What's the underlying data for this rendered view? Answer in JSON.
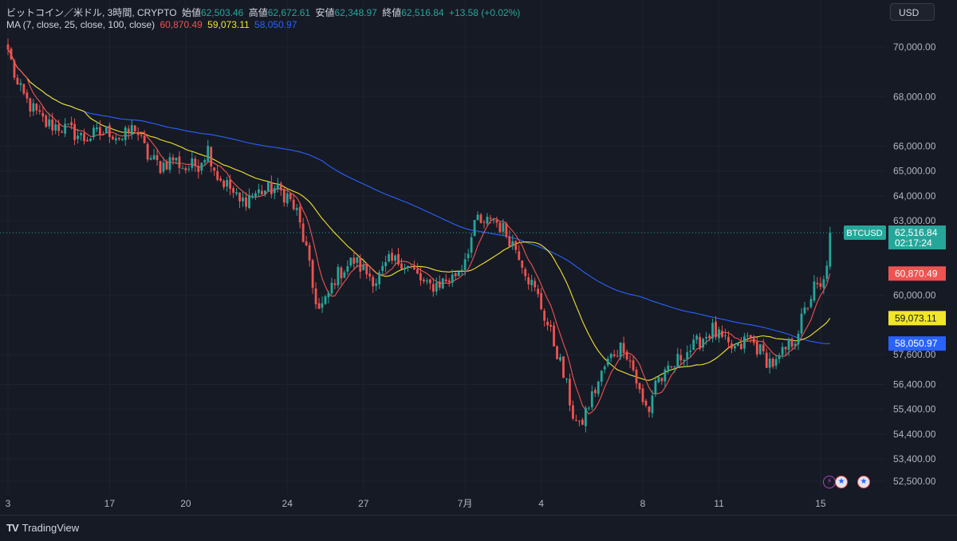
{
  "symbol": {
    "name": "ビットコイン／米ドル, 3時間, CRYPTO",
    "open_label": "始値",
    "open": "62,503.46",
    "high_label": "高値",
    "high": "62,672.61",
    "low_label": "安値",
    "low": "62,348.97",
    "close_label": "終値",
    "close": "62,516.84",
    "change": "+13.58 (+0.02%)"
  },
  "ma_legend": {
    "label": "MA (7, close, 25, close, 100, close)",
    "ma7": "60,870.49",
    "ma25": "59,073.11",
    "ma100": "58,050.97"
  },
  "currency": "USD",
  "brand": {
    "logo": "TV",
    "name": "TradingView"
  },
  "price_labels": {
    "ticker": "BTCUSD",
    "last": "62,516.84",
    "countdown": "02:17:24",
    "ma7": "60,870.49",
    "ma25": "59,073.11",
    "ma100": "58,050.97"
  },
  "colors": {
    "background": "#161a25",
    "up": "#26a69a",
    "down": "#ef5350",
    "ma7": "#ef5350",
    "ma25": "#f2e52a",
    "ma100": "#2962ff",
    "grid": "#1f2330"
  },
  "event_icons": [
    "lightning-icon",
    "us-flag-icon",
    "us-flag-icon"
  ],
  "chart_data": {
    "type": "candlestick",
    "y_axis": {
      "min": 52000,
      "max": 71000,
      "ticks": [
        {
          "value": 70000,
          "label": "70,000.00"
        },
        {
          "value": 68000,
          "label": "68,000.00"
        },
        {
          "value": 66000,
          "label": "66,000.00"
        },
        {
          "value": 65000,
          "label": "65,000.00"
        },
        {
          "value": 64000,
          "label": "64,000.00"
        },
        {
          "value": 63000,
          "label": "63,000.00"
        },
        {
          "value": 60000,
          "label": "60,000.00"
        },
        {
          "value": 57600,
          "label": "57,600.00"
        },
        {
          "value": 56400,
          "label": "56,400.00"
        },
        {
          "value": 55400,
          "label": "55,400.00"
        },
        {
          "value": 54400,
          "label": "54,400.00"
        },
        {
          "value": 53400,
          "label": "53,400.00"
        },
        {
          "value": 52500,
          "label": "52,500.00"
        }
      ]
    },
    "x_axis": {
      "ticks": [
        {
          "bar": 0,
          "label": "3"
        },
        {
          "bar": 32,
          "label": "17"
        },
        {
          "bar": 56,
          "label": "20"
        },
        {
          "bar": 88,
          "label": "24"
        },
        {
          "bar": 112,
          "label": "27"
        },
        {
          "bar": 144,
          "label": "7月"
        },
        {
          "bar": 168,
          "label": "4"
        },
        {
          "bar": 200,
          "label": "8"
        },
        {
          "bar": 224,
          "label": "11"
        },
        {
          "bar": 256,
          "label": "15"
        }
      ]
    },
    "last_price": 62516.84,
    "keypoints": [
      [
        0,
        69900
      ],
      [
        3,
        68400
      ],
      [
        6,
        67800
      ],
      [
        9,
        67300
      ],
      [
        12,
        66900
      ],
      [
        16,
        66800
      ],
      [
        20,
        66600
      ],
      [
        24,
        66300
      ],
      [
        28,
        66500
      ],
      [
        32,
        66600
      ],
      [
        36,
        66300
      ],
      [
        40,
        66800
      ],
      [
        44,
        65600
      ],
      [
        48,
        65200
      ],
      [
        52,
        65500
      ],
      [
        56,
        65100
      ],
      [
        60,
        65300
      ],
      [
        63,
        65900
      ],
      [
        66,
        64800
      ],
      [
        70,
        64300
      ],
      [
        73,
        63700
      ],
      [
        76,
        64000
      ],
      [
        80,
        64200
      ],
      [
        84,
        64300
      ],
      [
        88,
        64000
      ],
      [
        91,
        63300
      ],
      [
        94,
        61800
      ],
      [
        96,
        60300
      ],
      [
        98,
        59400
      ],
      [
        100,
        59700
      ],
      [
        103,
        60700
      ],
      [
        106,
        61100
      ],
      [
        109,
        61400
      ],
      [
        112,
        61000
      ],
      [
        116,
        60600
      ],
      [
        120,
        61300
      ],
      [
        124,
        61400
      ],
      [
        128,
        60900
      ],
      [
        132,
        60300
      ],
      [
        136,
        60500
      ],
      [
        140,
        60700
      ],
      [
        143,
        61200
      ],
      [
        146,
        62300
      ],
      [
        148,
        63100
      ],
      [
        150,
        62700
      ],
      [
        152,
        63200
      ],
      [
        155,
        62800
      ],
      [
        158,
        62300
      ],
      [
        161,
        61700
      ],
      [
        164,
        60700
      ],
      [
        167,
        59900
      ],
      [
        170,
        58800
      ],
      [
        173,
        57700
      ],
      [
        176,
        56300
      ],
      [
        178,
        55200
      ],
      [
        180,
        54600
      ],
      [
        182,
        55300
      ],
      [
        185,
        56200
      ],
      [
        188,
        57100
      ],
      [
        191,
        57700
      ],
      [
        194,
        58000
      ],
      [
        197,
        57000
      ],
      [
        200,
        55600
      ],
      [
        202,
        55400
      ],
      [
        204,
        56600
      ],
      [
        207,
        56700
      ],
      [
        210,
        57200
      ],
      [
        213,
        57700
      ],
      [
        216,
        57900
      ],
      [
        219,
        58300
      ],
      [
        222,
        58600
      ],
      [
        224,
        58300
      ],
      [
        227,
        57900
      ],
      [
        230,
        57800
      ],
      [
        233,
        58300
      ],
      [
        236,
        57900
      ],
      [
        239,
        57400
      ],
      [
        242,
        57200
      ],
      [
        245,
        57800
      ],
      [
        248,
        58300
      ],
      [
        251,
        59300
      ],
      [
        254,
        60300
      ],
      [
        256,
        60200
      ],
      [
        257,
        60500
      ],
      [
        258,
        61400
      ],
      [
        259,
        62517
      ]
    ],
    "ma7_end": 60870.49,
    "ma25_end": 59073.11,
    "ma100_end": 58050.97
  }
}
